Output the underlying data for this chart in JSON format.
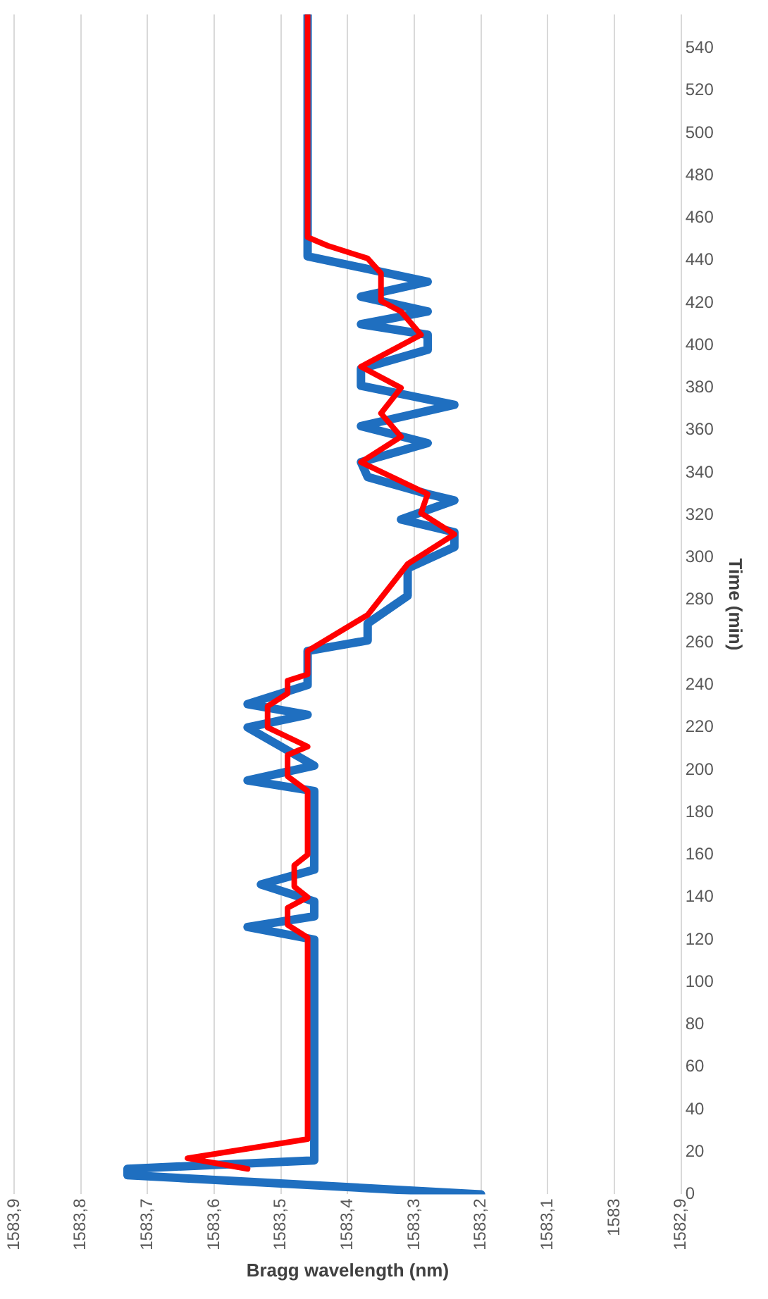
{
  "chart_data": {
    "type": "line",
    "orientation": "horizontal",
    "xlabel": "Bragg wavelength (nm)",
    "ylabel": "Time (min)",
    "xlim": [
      1583.9,
      1582.9
    ],
    "xticks": [
      {
        "value": 1583.9,
        "label": "1583,9"
      },
      {
        "value": 1583.8,
        "label": "1583,8"
      },
      {
        "value": 1583.7,
        "label": "1583,7"
      },
      {
        "value": 1583.6,
        "label": "1583,6"
      },
      {
        "value": 1583.5,
        "label": "1583,5"
      },
      {
        "value": 1583.4,
        "label": "1583,4"
      },
      {
        "value": 1583.3,
        "label": "1583,3"
      },
      {
        "value": 1583.2,
        "label": "1583,2"
      },
      {
        "value": 1583.1,
        "label": "1583,1"
      },
      1583,
      {
        "value": 1582.9,
        "label": "1582,9"
      }
    ],
    "ylim": [
      0,
      556
    ],
    "yticks": [
      0,
      20,
      40,
      60,
      80,
      100,
      120,
      140,
      160,
      180,
      200,
      220,
      240,
      260,
      280,
      300,
      320,
      340,
      360,
      380,
      400,
      420,
      440,
      460,
      480,
      500,
      520,
      540
    ],
    "grid": "x",
    "legend": false,
    "marker": "none",
    "line_style": "solid",
    "series": [
      {
        "color": "#1f6fc0",
        "x": [
          0,
          9,
          12,
          16,
          25,
          120,
          126,
          131,
          138,
          146,
          153,
          190,
          195,
          202,
          220,
          226,
          231,
          240,
          256,
          261,
          269,
          282,
          295,
          305,
          312,
          318,
          327,
          330,
          338,
          345,
          354,
          362,
          372,
          381,
          389,
          398,
          405,
          410,
          416,
          423,
          430,
          434,
          442,
          449,
          556
        ],
        "values": [
          1583.2,
          1583.73,
          1583.73,
          1583.45,
          1583.45,
          1583.45,
          1583.55,
          1583.45,
          1583.45,
          1583.53,
          1583.45,
          1583.45,
          1583.55,
          1583.45,
          1583.55,
          1583.46,
          1583.55,
          1583.46,
          1583.46,
          1583.37,
          1583.37,
          1583.31,
          1583.31,
          1583.24,
          1583.24,
          1583.32,
          1583.24,
          1583.28,
          1583.37,
          1583.38,
          1583.28,
          1583.38,
          1583.24,
          1583.38,
          1583.38,
          1583.28,
          1583.28,
          1583.38,
          1583.28,
          1583.38,
          1583.28,
          1583.34,
          1583.46,
          1583.46,
          1583.46
        ]
      },
      {
        "color": "#ff0000",
        "x": [
          12,
          17,
          26,
          121,
          127,
          135,
          140,
          145,
          155,
          160,
          190,
          197,
          207,
          211,
          220,
          230,
          236,
          242,
          245,
          256,
          273,
          297,
          311,
          321,
          330,
          345,
          357,
          368,
          380,
          390,
          405,
          416,
          421,
          434,
          441,
          447,
          451,
          556
        ],
        "values": [
          1583.55,
          1583.64,
          1583.46,
          1583.46,
          1583.49,
          1583.49,
          1583.46,
          1583.48,
          1583.48,
          1583.46,
          1583.46,
          1583.49,
          1583.49,
          1583.46,
          1583.52,
          1583.52,
          1583.49,
          1583.49,
          1583.46,
          1583.46,
          1583.37,
          1583.31,
          1583.24,
          1583.29,
          1583.28,
          1583.38,
          1583.32,
          1583.35,
          1583.32,
          1583.38,
          1583.29,
          1583.32,
          1583.35,
          1583.35,
          1583.37,
          1583.43,
          1583.46,
          1583.46
        ]
      }
    ]
  }
}
